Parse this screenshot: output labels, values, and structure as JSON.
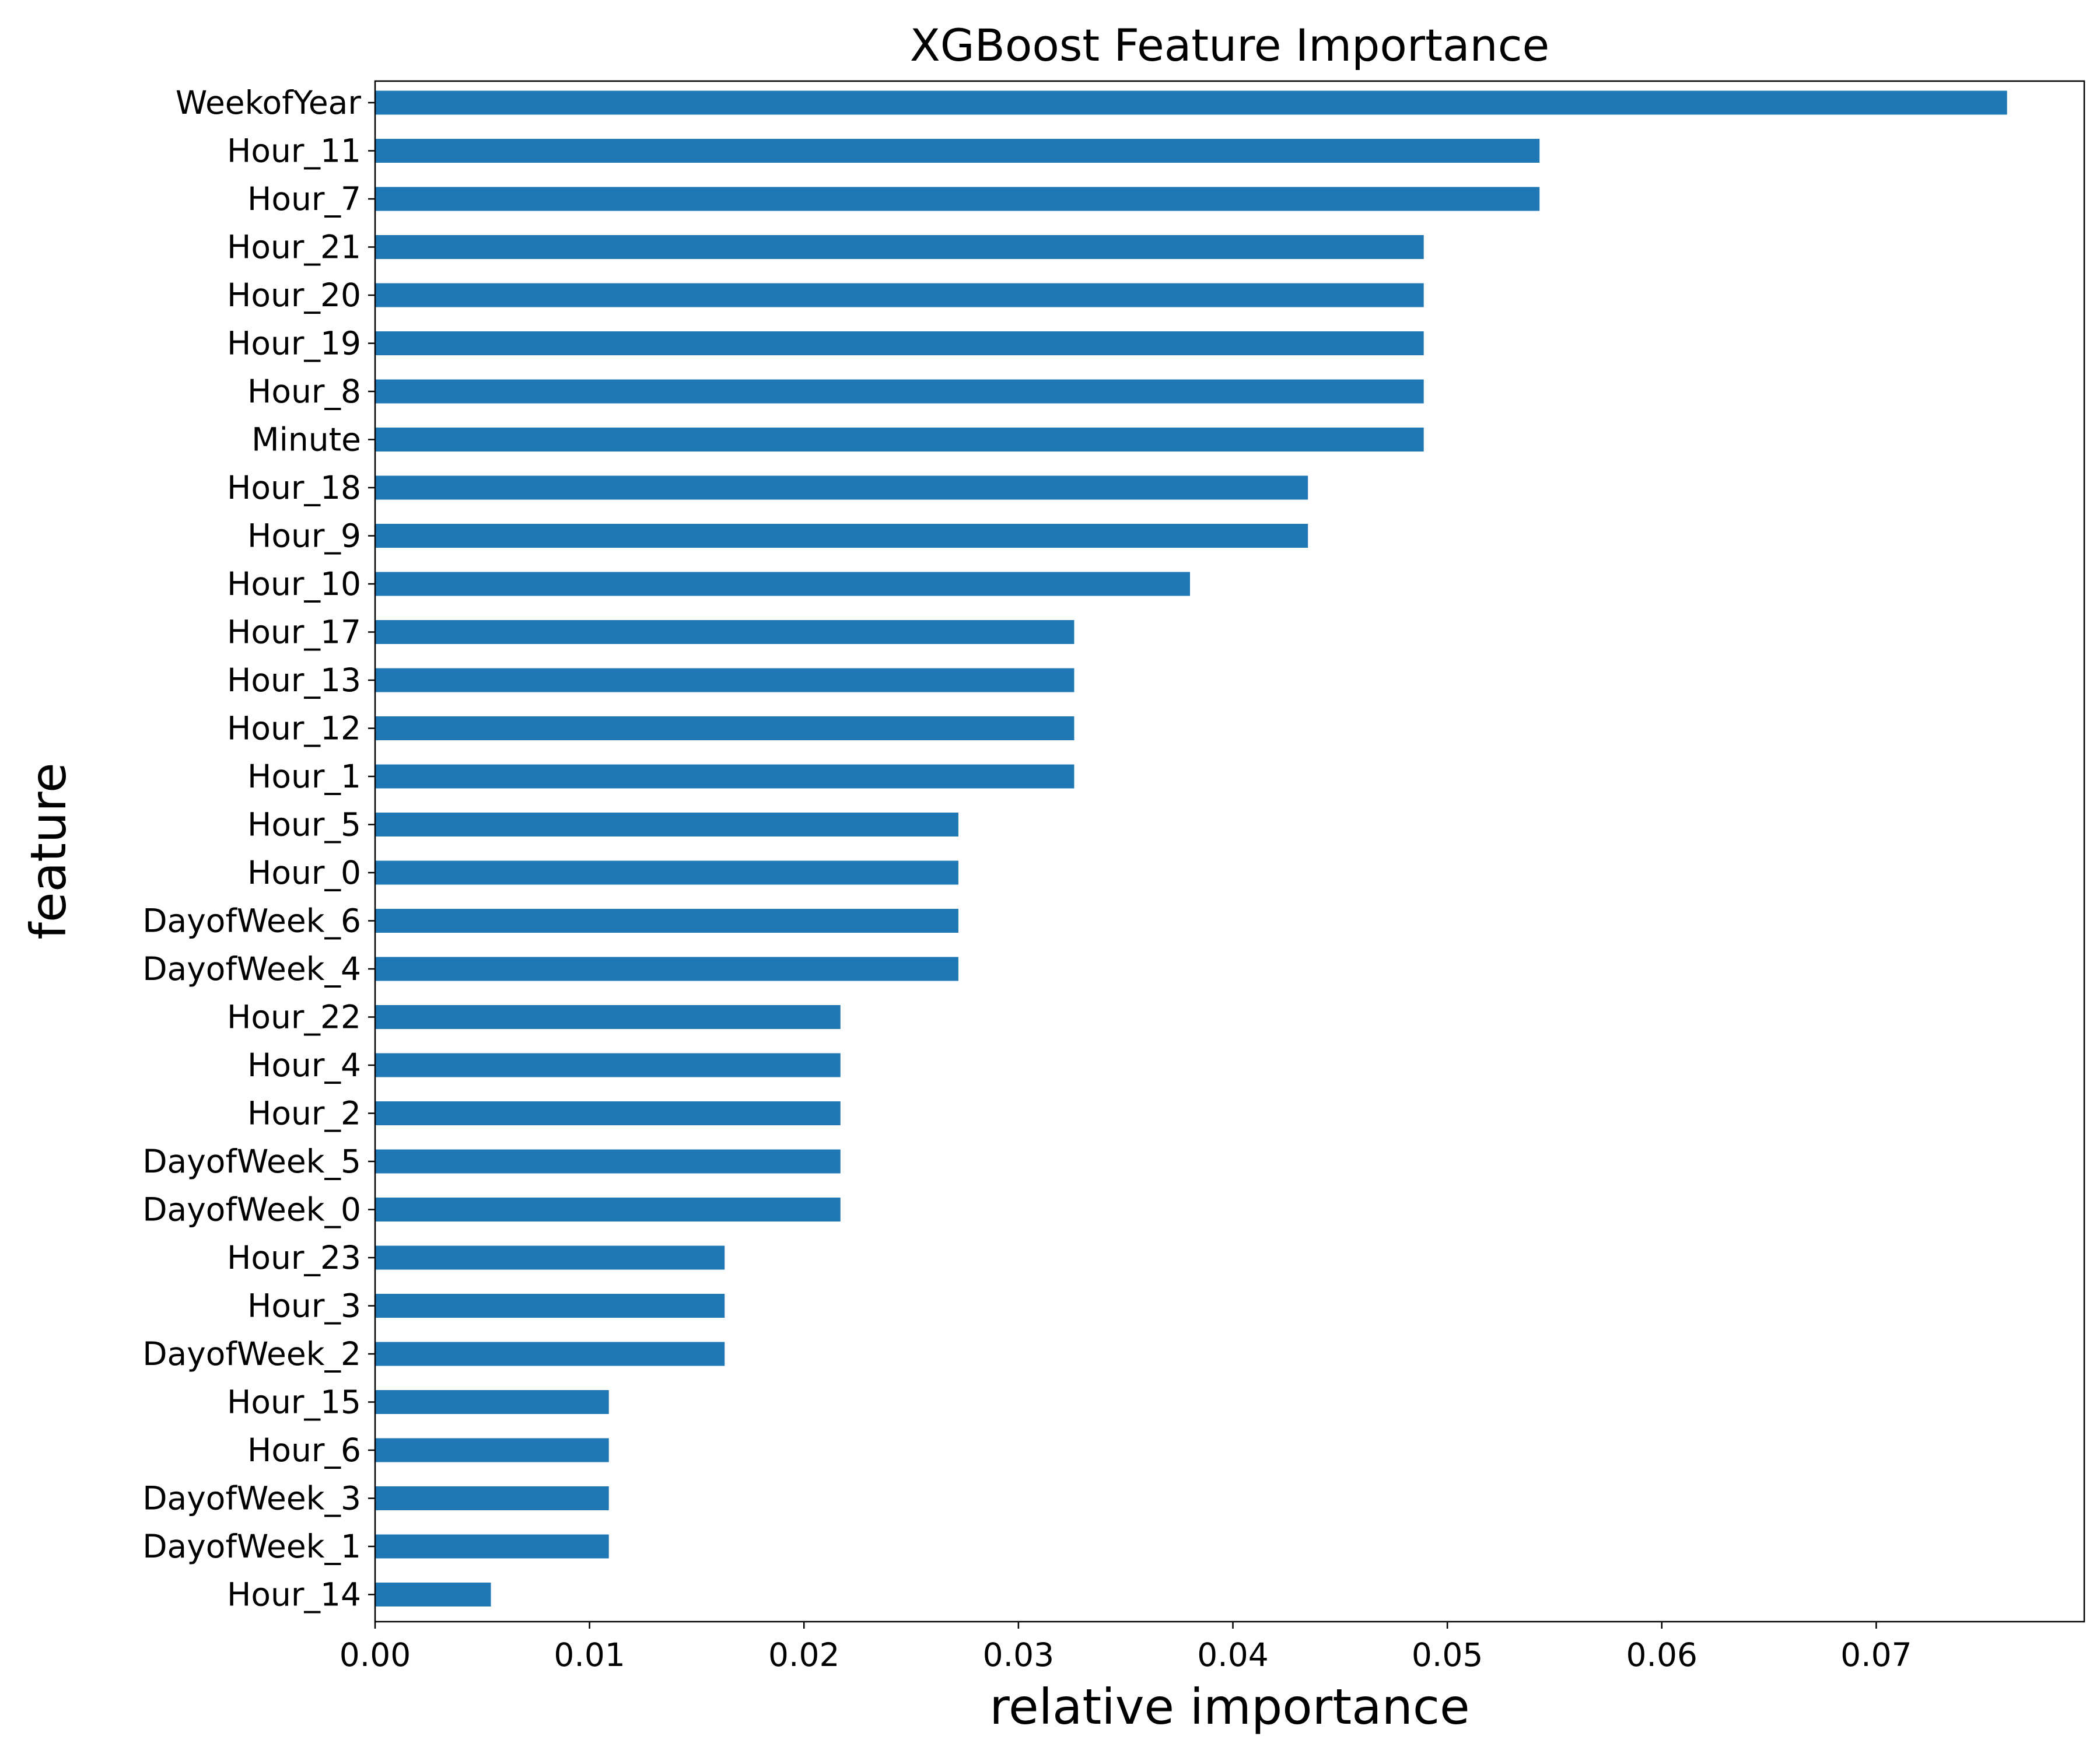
{
  "chart_data": {
    "type": "bar",
    "orientation": "horizontal",
    "title": "XGBoost Feature Importance",
    "xlabel": "relative importance",
    "ylabel": "feature",
    "xlim": [
      0.0,
      0.0797
    ],
    "xticks": [
      "0.00",
      "0.01",
      "0.02",
      "0.03",
      "0.04",
      "0.05",
      "0.06",
      "0.07"
    ],
    "grid": false,
    "bar_color": "#1f77b4",
    "categories": [
      "WeekofYear",
      "Hour_11",
      "Hour_7",
      "Hour_21",
      "Hour_20",
      "Hour_19",
      "Hour_8",
      "Minute",
      "Hour_18",
      "Hour_9",
      "Hour_10",
      "Hour_17",
      "Hour_13",
      "Hour_12",
      "Hour_1",
      "Hour_5",
      "Hour_0",
      "DayofWeek_6",
      "DayofWeek_4",
      "Hour_22",
      "Hour_4",
      "Hour_2",
      "DayofWeek_5",
      "DayofWeek_0",
      "Hour_23",
      "Hour_3",
      "DayofWeek_2",
      "Hour_15",
      "Hour_6",
      "DayofWeek_3",
      "DayofWeek_1",
      "Hour_14"
    ],
    "values": [
      0.0761,
      0.0543,
      0.0543,
      0.0489,
      0.0489,
      0.0489,
      0.0489,
      0.0489,
      0.0435,
      0.0435,
      0.038,
      0.0326,
      0.0326,
      0.0326,
      0.0326,
      0.0272,
      0.0272,
      0.0272,
      0.0272,
      0.0217,
      0.0217,
      0.0217,
      0.0217,
      0.0217,
      0.0163,
      0.0163,
      0.0163,
      0.0109,
      0.0109,
      0.0109,
      0.0109,
      0.0054
    ]
  }
}
